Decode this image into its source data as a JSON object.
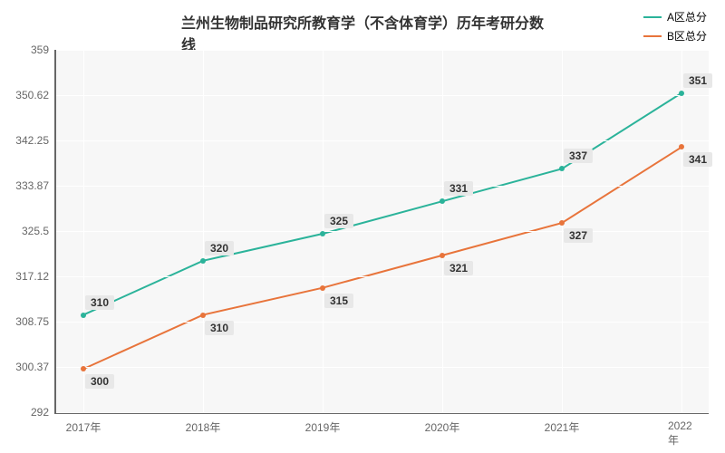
{
  "chart": {
    "type": "line",
    "title": "兰州生物制品研究所教育学（不含体育学）历年考研分数线",
    "title_fontsize": 16,
    "title_color": "#333333",
    "background_color": "#ffffff",
    "plot_background": "#f7f7f7",
    "grid_color": "#ffffff",
    "axis_color": "#666666",
    "label_fontsize": 12,
    "x_categories": [
      "2017年",
      "2018年",
      "2019年",
      "2020年",
      "2021年",
      "2022年"
    ],
    "y_ticks": [
      292,
      300.37,
      308.75,
      317.12,
      325.5,
      333.87,
      342.25,
      350.62,
      359
    ],
    "ylim": [
      292,
      359
    ],
    "series": [
      {
        "name": "A区总分",
        "color": "#2bb39a",
        "line_width": 2,
        "values": [
          310,
          320,
          325,
          331,
          337,
          351
        ]
      },
      {
        "name": "B区总分",
        "color": "#e8743b",
        "line_width": 2,
        "values": [
          300,
          310,
          315,
          321,
          327,
          341
        ]
      }
    ]
  }
}
